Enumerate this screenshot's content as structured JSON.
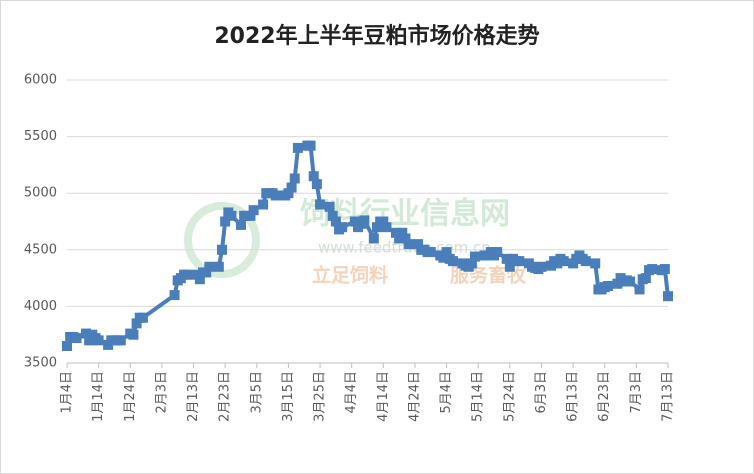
{
  "chart_data": {
    "type": "line",
    "title": "2022年上半年豆粕市场价格走势",
    "watermark": [
      "饲料行业信息网",
      "www.feedtrade.com.cn",
      "立足饲料",
      "服务畜牧"
    ],
    "x": [
      4,
      5,
      6,
      7,
      10,
      11,
      12,
      13,
      14,
      17,
      18,
      19,
      20,
      21,
      24,
      25,
      26,
      27,
      28,
      38,
      39,
      40,
      41,
      42,
      45,
      46,
      47,
      48,
      49,
      52,
      53,
      54,
      55,
      56,
      59,
      60,
      61,
      62,
      63,
      66,
      67,
      68,
      69,
      70,
      73,
      74,
      75,
      76,
      77,
      80,
      81,
      82,
      83,
      84,
      87,
      88,
      89,
      90,
      91,
      95,
      96,
      97,
      98,
      101,
      102,
      103,
      104,
      105,
      108,
      109,
      110,
      111,
      112,
      115,
      116,
      117,
      118,
      119,
      122,
      123,
      124,
      125,
      126,
      129,
      130,
      131,
      132,
      133,
      136,
      137,
      138,
      139,
      140,
      143,
      144,
      145,
      146,
      147,
      150,
      151,
      152,
      153,
      154,
      157,
      158,
      159,
      160,
      161,
      164,
      165,
      166,
      167,
      168,
      171,
      172,
      173,
      174,
      175,
      178,
      179,
      180,
      181,
      182,
      185,
      186,
      187,
      188,
      189,
      192,
      193,
      194
    ],
    "values": [
      3650,
      3730,
      3730,
      3720,
      3760,
      3700,
      3750,
      3720,
      3700,
      3660,
      3700,
      3700,
      3700,
      3700,
      3760,
      3750,
      3850,
      3900,
      3900,
      4100,
      4230,
      4250,
      4280,
      4280,
      4280,
      4240,
      4300,
      4300,
      4350,
      4350,
      4500,
      4750,
      4830,
      4800,
      4720,
      4800,
      4800,
      4800,
      4850,
      4900,
      5000,
      5000,
      5000,
      4980,
      4980,
      5000,
      5050,
      5130,
      5400,
      5420,
      5420,
      5150,
      5080,
      4900,
      4880,
      4800,
      4750,
      4680,
      4700,
      4750,
      4700,
      4730,
      4760,
      4600,
      4700,
      4750,
      4750,
      4700,
      4650,
      4600,
      4650,
      4600,
      4550,
      4550,
      4500,
      4500,
      4480,
      4480,
      4450,
      4430,
      4480,
      4420,
      4400,
      4380,
      4360,
      4350,
      4380,
      4440,
      4450,
      4450,
      4480,
      4450,
      4480,
      4420,
      4350,
      4420,
      4400,
      4400,
      4380,
      4350,
      4340,
      4330,
      4350,
      4360,
      4400,
      4380,
      4420,
      4400,
      4380,
      4420,
      4450,
      4420,
      4400,
      4380,
      4150,
      4150,
      4170,
      4180,
      4200,
      4250,
      4220,
      4230,
      4220,
      4150,
      4240,
      4250,
      4320,
      4330,
      4320,
      4330,
      4090
    ],
    "color": "#4a7ebb",
    "xlim": [
      4,
      194
    ],
    "xticks": [
      {
        "value": 4,
        "label": "1月4日"
      },
      {
        "value": 14,
        "label": "1月14日"
      },
      {
        "value": 24,
        "label": "1月24日"
      },
      {
        "value": 34,
        "label": "2月3日"
      },
      {
        "value": 44,
        "label": "2月13日"
      },
      {
        "value": 54,
        "label": "2月23日"
      },
      {
        "value": 64,
        "label": "3月5日"
      },
      {
        "value": 74,
        "label": "3月15日"
      },
      {
        "value": 84,
        "label": "3月25日"
      },
      {
        "value": 94,
        "label": "4月4日"
      },
      {
        "value": 104,
        "label": "4月14日"
      },
      {
        "value": 114,
        "label": "4月24日"
      },
      {
        "value": 124,
        "label": "5月4日"
      },
      {
        "value": 134,
        "label": "5月14日"
      },
      {
        "value": 144,
        "label": "5月24日"
      },
      {
        "value": 154,
        "label": "6月3日"
      },
      {
        "value": 164,
        "label": "6月13日"
      },
      {
        "value": 174,
        "label": "6月23日"
      },
      {
        "value": 184,
        "label": "7月3日"
      },
      {
        "value": 194,
        "label": "7月13日"
      }
    ],
    "ylim": [
      3500,
      6000
    ],
    "yticks": [
      3500,
      4000,
      4500,
      5000,
      5500,
      6000
    ],
    "grid": true
  }
}
